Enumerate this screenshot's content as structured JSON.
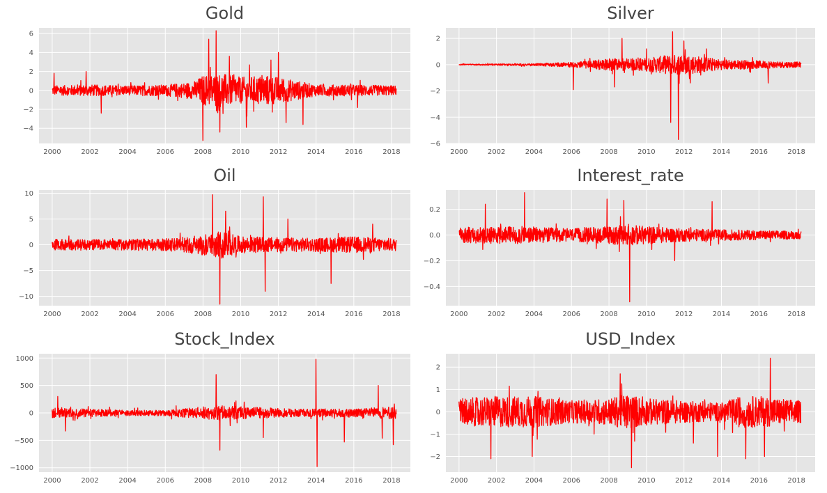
{
  "style": {
    "background": "#e5e5e5",
    "grid": "#ffffff",
    "line_color": "#ff0000",
    "tick_color": "#555555",
    "title_color": "#444444"
  },
  "chart_data": [
    {
      "type": "line",
      "title": "Gold",
      "xlabel": "",
      "ylabel": "",
      "grid": true,
      "xlim": [
        1999.3,
        2019.0
      ],
      "ylim": [
        -5.6,
        6.6
      ],
      "x_ticks": [
        2000,
        2002,
        2004,
        2006,
        2008,
        2010,
        2012,
        2014,
        2016,
        2018
      ],
      "x_tick_labels": [
        "2000",
        "2002",
        "2004",
        "2006",
        "2008",
        "2010",
        "2012",
        "2014",
        "2016",
        "2018"
      ],
      "y_ticks": [
        -4,
        -2,
        0,
        2,
        4,
        6
      ],
      "y_tick_labels": [
        "−4",
        "−2",
        "0",
        "2",
        "4",
        "6"
      ],
      "series": [
        {
          "color": "#ff0000",
          "x_range": [
            2000.0,
            2018.25
          ],
          "amplitude_profile": [
            [
              2000.0,
              0.5
            ],
            [
              2002.0,
              0.6
            ],
            [
              2004.0,
              0.5
            ],
            [
              2006.0,
              0.6
            ],
            [
              2007.5,
              0.9
            ],
            [
              2008.0,
              1.6
            ],
            [
              2009.0,
              1.8
            ],
            [
              2010.0,
              1.4
            ],
            [
              2011.5,
              1.6
            ],
            [
              2012.5,
              1.2
            ],
            [
              2014.0,
              0.6
            ],
            [
              2016.0,
              0.6
            ],
            [
              2018.25,
              0.5
            ]
          ],
          "spikes": [
            [
              2000.1,
              1.8
            ],
            [
              2001.8,
              2.0
            ],
            [
              2002.6,
              -2.4
            ],
            [
              2008.0,
              -5.3
            ],
            [
              2008.3,
              5.4
            ],
            [
              2008.7,
              6.3
            ],
            [
              2008.9,
              -4.4
            ],
            [
              2009.4,
              3.6
            ],
            [
              2010.3,
              -3.9
            ],
            [
              2011.6,
              3.2
            ],
            [
              2012.0,
              4.0
            ],
            [
              2012.4,
              -3.4
            ],
            [
              2013.3,
              -3.6
            ],
            [
              2016.2,
              -1.8
            ]
          ]
        }
      ]
    },
    {
      "type": "line",
      "title": "Silver",
      "xlabel": "",
      "ylabel": "",
      "grid": true,
      "xlim": [
        1999.3,
        2019.0
      ],
      "ylim": [
        -6.0,
        2.8
      ],
      "x_ticks": [
        2000,
        2002,
        2004,
        2006,
        2008,
        2010,
        2012,
        2014,
        2016,
        2018
      ],
      "x_tick_labels": [
        "2000",
        "2002",
        "2004",
        "2006",
        "2008",
        "2010",
        "2012",
        "2014",
        "2016",
        "2018"
      ],
      "y_ticks": [
        -6,
        -4,
        -2,
        0,
        2
      ],
      "y_tick_labels": [
        "−6",
        "−4",
        "−2",
        "0",
        "2"
      ],
      "series": [
        {
          "color": "#ff0000",
          "x_range": [
            2000.0,
            2018.25
          ],
          "amplitude_profile": [
            [
              2000.0,
              0.04
            ],
            [
              2004.0,
              0.08
            ],
            [
              2006.0,
              0.2
            ],
            [
              2007.0,
              0.3
            ],
            [
              2008.0,
              0.45
            ],
            [
              2010.0,
              0.5
            ],
            [
              2011.0,
              0.7
            ],
            [
              2012.0,
              0.8
            ],
            [
              2013.0,
              0.6
            ],
            [
              2014.0,
              0.4
            ],
            [
              2016.0,
              0.3
            ],
            [
              2018.25,
              0.2
            ]
          ],
          "spikes": [
            [
              2006.1,
              -1.9
            ],
            [
              2008.3,
              -1.7
            ],
            [
              2008.7,
              2.0
            ],
            [
              2010.0,
              1.2
            ],
            [
              2011.3,
              -4.4
            ],
            [
              2011.4,
              2.5
            ],
            [
              2011.7,
              -5.7
            ],
            [
              2012.0,
              1.8
            ],
            [
              2013.2,
              1.2
            ],
            [
              2016.5,
              -1.4
            ]
          ]
        }
      ]
    },
    {
      "type": "line",
      "title": "Oil",
      "xlabel": "",
      "ylabel": "",
      "grid": true,
      "xlim": [
        1999.3,
        2019.0
      ],
      "ylim": [
        -11.8,
        10.6
      ],
      "x_ticks": [
        2000,
        2002,
        2004,
        2006,
        2008,
        2010,
        2012,
        2014,
        2016,
        2018
      ],
      "x_tick_labels": [
        "2000",
        "2002",
        "2004",
        "2006",
        "2008",
        "2010",
        "2012",
        "2014",
        "2016",
        "2018"
      ],
      "y_ticks": [
        -10,
        -5,
        0,
        5,
        10
      ],
      "y_tick_labels": [
        "−10",
        "−5",
        "0",
        "5",
        "10"
      ],
      "series": [
        {
          "color": "#ff0000",
          "x_range": [
            2000.0,
            2018.25
          ],
          "amplitude_profile": [
            [
              2000.0,
              1.1
            ],
            [
              2003.0,
              1.0
            ],
            [
              2006.0,
              1.2
            ],
            [
              2008.0,
              2.0
            ],
            [
              2009.0,
              2.6
            ],
            [
              2010.0,
              1.6
            ],
            [
              2012.0,
              1.4
            ],
            [
              2014.0,
              1.3
            ],
            [
              2016.0,
              1.6
            ],
            [
              2018.25,
              1.2
            ]
          ],
          "spikes": [
            [
              2008.5,
              9.7
            ],
            [
              2008.9,
              -11.5
            ],
            [
              2009.2,
              6.5
            ],
            [
              2011.2,
              9.3
            ],
            [
              2011.3,
              -9.0
            ],
            [
              2012.5,
              5.0
            ],
            [
              2014.8,
              -7.5
            ],
            [
              2017.0,
              4.0
            ]
          ]
        }
      ]
    },
    {
      "type": "line",
      "title": "Interest_rate",
      "xlabel": "",
      "ylabel": "",
      "grid": true,
      "xlim": [
        1999.3,
        2019.0
      ],
      "ylim": [
        -0.55,
        0.35
      ],
      "x_ticks": [
        2000,
        2002,
        2004,
        2006,
        2008,
        2010,
        2012,
        2014,
        2016,
        2018
      ],
      "x_tick_labels": [
        "2000",
        "2002",
        "2004",
        "2006",
        "2008",
        "2010",
        "2012",
        "2014",
        "2016",
        "2018"
      ],
      "y_ticks": [
        -0.4,
        -0.2,
        0.0,
        0.2
      ],
      "y_tick_labels": [
        "−0.4",
        "−0.2",
        "0.0",
        "0.2"
      ],
      "series": [
        {
          "color": "#ff0000",
          "x_range": [
            2000.0,
            2018.25
          ],
          "amplitude_profile": [
            [
              2000.0,
              0.06
            ],
            [
              2003.0,
              0.07
            ],
            [
              2006.0,
              0.05
            ],
            [
              2008.0,
              0.07
            ],
            [
              2009.0,
              0.08
            ],
            [
              2012.0,
              0.05
            ],
            [
              2015.0,
              0.04
            ],
            [
              2018.25,
              0.03
            ]
          ],
          "spikes": [
            [
              2001.4,
              0.24
            ],
            [
              2003.5,
              0.33
            ],
            [
              2007.9,
              0.28
            ],
            [
              2008.8,
              0.27
            ],
            [
              2009.1,
              -0.52
            ],
            [
              2013.5,
              0.26
            ],
            [
              2011.5,
              -0.2
            ]
          ]
        }
      ]
    },
    {
      "type": "line",
      "title": "Stock_Index",
      "xlabel": "",
      "ylabel": "",
      "grid": true,
      "xlim": [
        1999.3,
        2019.0
      ],
      "ylim": [
        -1080,
        1080
      ],
      "x_ticks": [
        2000,
        2002,
        2004,
        2006,
        2008,
        2010,
        2012,
        2014,
        2016,
        2018
      ],
      "x_tick_labels": [
        "2000",
        "2002",
        "2004",
        "2006",
        "2008",
        "2010",
        "2012",
        "2014",
        "2016",
        "2018"
      ],
      "y_ticks": [
        -1000,
        -500,
        0,
        500,
        1000
      ],
      "y_tick_labels": [
        "−1000",
        "−500",
        "0",
        "500",
        "1000"
      ],
      "series": [
        {
          "color": "#ff0000",
          "x_range": [
            2000.0,
            2018.25
          ],
          "amplitude_profile": [
            [
              2000.0,
              90
            ],
            [
              2002.0,
              70
            ],
            [
              2004.0,
              50
            ],
            [
              2006.0,
              55
            ],
            [
              2008.0,
              110
            ],
            [
              2009.0,
              130
            ],
            [
              2011.0,
              100
            ],
            [
              2013.0,
              70
            ],
            [
              2016.0,
              80
            ],
            [
              2018.25,
              110
            ]
          ],
          "spikes": [
            [
              2000.3,
              300
            ],
            [
              2000.7,
              -330
            ],
            [
              2008.7,
              700
            ],
            [
              2008.9,
              -680
            ],
            [
              2011.2,
              -450
            ],
            [
              2014.0,
              980
            ],
            [
              2014.05,
              -980
            ],
            [
              2015.5,
              -530
            ],
            [
              2017.3,
              500
            ],
            [
              2017.5,
              -460
            ],
            [
              2018.1,
              -580
            ]
          ]
        }
      ]
    },
    {
      "type": "line",
      "title": "USD_Index",
      "xlabel": "",
      "ylabel": "",
      "grid": true,
      "xlim": [
        1999.3,
        2019.0
      ],
      "ylim": [
        -2.7,
        2.6
      ],
      "x_ticks": [
        2000,
        2002,
        2004,
        2006,
        2008,
        2010,
        2012,
        2014,
        2016,
        2018
      ],
      "x_tick_labels": [
        "2000",
        "2002",
        "2004",
        "2006",
        "2008",
        "2010",
        "2012",
        "2014",
        "2016",
        "2018"
      ],
      "y_ticks": [
        -2,
        -1,
        0,
        1,
        2
      ],
      "y_tick_labels": [
        "−2",
        "−1",
        "0",
        "1",
        "2"
      ],
      "series": [
        {
          "color": "#ff0000",
          "x_range": [
            2000.0,
            2018.25
          ],
          "amplitude_profile": [
            [
              2000.0,
              0.6
            ],
            [
              2002.0,
              0.7
            ],
            [
              2004.0,
              0.7
            ],
            [
              2006.0,
              0.5
            ],
            [
              2008.0,
              0.6
            ],
            [
              2009.0,
              0.8
            ],
            [
              2010.0,
              0.6
            ],
            [
              2012.0,
              0.5
            ],
            [
              2014.0,
              0.4
            ],
            [
              2015.0,
              0.7
            ],
            [
              2016.0,
              0.7
            ],
            [
              2018.25,
              0.5
            ]
          ],
          "spikes": [
            [
              2001.7,
              -2.1
            ],
            [
              2003.9,
              -2.0
            ],
            [
              2008.6,
              1.7
            ],
            [
              2009.2,
              -2.5
            ],
            [
              2012.5,
              -1.4
            ],
            [
              2013.8,
              -2.0
            ],
            [
              2015.3,
              -2.1
            ],
            [
              2016.6,
              2.4
            ],
            [
              2016.3,
              -2.0
            ]
          ]
        }
      ]
    }
  ]
}
